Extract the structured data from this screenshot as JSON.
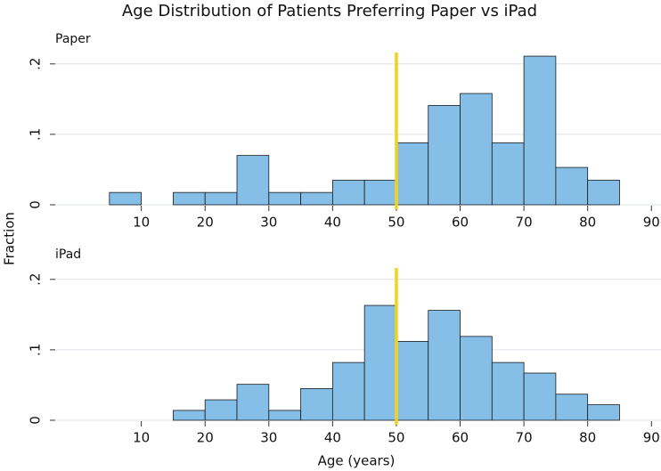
{
  "chart_data": {
    "type": "histogram",
    "title": "Age Distribution of Patients Preferring Paper vs iPad",
    "xlabel": "Age (years)",
    "ylabel": "Fraction",
    "bins": [
      5,
      10,
      15,
      20,
      25,
      30,
      35,
      40,
      45,
      50,
      55,
      60,
      65,
      70,
      75,
      80,
      85
    ],
    "xlim": [
      -3.5,
      91.5
    ],
    "xticks": [
      10,
      20,
      30,
      40,
      50,
      60,
      70,
      80,
      90
    ],
    "color": "#85bfe8",
    "edge_color": "#1a1a1a",
    "grid": true,
    "reference_line": {
      "x": 50,
      "color": "#f5d117"
    },
    "panels": [
      {
        "name": "Paper",
        "ylim": [
          0,
          0.225
        ],
        "yticks": [
          0,
          {
            "value": 0.1,
            "label": ".1"
          },
          {
            "value": 0.2,
            "label": ".2"
          }
        ],
        "values": [
          0.0175,
          0,
          0.0175,
          0.0175,
          0.07,
          0.0175,
          0.0175,
          0.035,
          0.035,
          0.088,
          0.141,
          0.158,
          0.088,
          0.211,
          0.053,
          0.035
        ]
      },
      {
        "name": "iPad",
        "ylim": [
          0,
          0.225
        ],
        "yticks": [
          0,
          {
            "value": 0.1,
            "label": ".1"
          },
          {
            "value": 0.2,
            "label": ".2"
          }
        ],
        "values": [
          0,
          0,
          0.014,
          0.029,
          0.051,
          0.014,
          0.045,
          0.082,
          0.163,
          0.112,
          0.156,
          0.119,
          0.082,
          0.067,
          0.037,
          0.022
        ]
      }
    ]
  }
}
